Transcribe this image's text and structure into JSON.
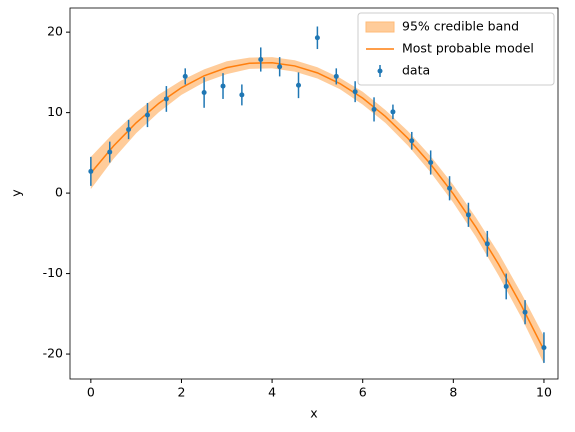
{
  "chart_data": {
    "type": "errorbar",
    "xlabel": "x",
    "ylabel": "y",
    "xlim": [
      -0.46,
      10.31
    ],
    "ylim": [
      -23.1,
      23.0
    ],
    "xticks": [
      0,
      2,
      4,
      6,
      8,
      10
    ],
    "yticks": [
      -20,
      -10,
      0,
      10,
      20
    ],
    "legend": "upper right",
    "band": {
      "name": "95% credible band",
      "color": "#ffbb78",
      "x": [
        0,
        0.5,
        1,
        1.5,
        2,
        2.5,
        3,
        3.5,
        4,
        4.5,
        5,
        5.5,
        6,
        6.5,
        7,
        7.5,
        8,
        8.5,
        9,
        9.5,
        10
      ],
      "lower": [
        0.5,
        4.25,
        7.44,
        10.05,
        12.2,
        13.78,
        14.79,
        15.43,
        15.5,
        15.1,
        14.24,
        12.9,
        11.0,
        8.73,
        5.89,
        2.58,
        -1.2,
        -5.45,
        -10.26,
        -15.45,
        -21.2
      ],
      "upper": [
        4.5,
        7.45,
        10.04,
        12.25,
        14.0,
        15.38,
        16.39,
        16.83,
        16.9,
        16.5,
        15.64,
        14.3,
        12.6,
        10.33,
        7.69,
        4.58,
        1.0,
        -3.05,
        -7.46,
        -12.45,
        -17.8
      ]
    },
    "model": {
      "name": "Most probable model",
      "color": "#ff7f0e",
      "x": [
        0,
        0.5,
        1,
        1.5,
        2,
        2.5,
        3,
        3.5,
        4,
        4.5,
        5,
        5.5,
        6,
        6.5,
        7,
        7.5,
        8,
        8.5,
        9,
        9.5,
        10
      ],
      "values": [
        2.5,
        5.85,
        8.74,
        11.15,
        13.1,
        14.58,
        15.59,
        16.13,
        16.2,
        15.8,
        14.94,
        13.6,
        11.8,
        9.53,
        6.79,
        3.58,
        -0.1,
        -4.25,
        -8.86,
        -13.95,
        -19.5
      ]
    },
    "data": {
      "name": "data",
      "color": "#1f77b4",
      "x": [
        0,
        0.417,
        0.833,
        1.25,
        1.667,
        2.083,
        2.5,
        2.917,
        3.333,
        3.75,
        4.167,
        4.583,
        5,
        5.417,
        5.833,
        6.25,
        6.667,
        7.083,
        7.5,
        7.917,
        8.333,
        8.75,
        9.167,
        9.583,
        10
      ],
      "values": [
        2.7,
        5.1,
        7.9,
        9.7,
        11.7,
        14.5,
        12.5,
        13.3,
        12.2,
        16.6,
        15.7,
        13.4,
        19.3,
        14.5,
        12.6,
        10.4,
        10.1,
        6.5,
        3.8,
        0.6,
        -2.7,
        -6.3,
        -11.6,
        -14.8,
        -19.2
      ],
      "errors": [
        1.8,
        1.3,
        1.2,
        1.5,
        1.6,
        1.0,
        1.9,
        1.6,
        1.3,
        1.5,
        1.2,
        1.6,
        1.4,
        1.0,
        1.3,
        1.5,
        0.9,
        1.1,
        1.5,
        1.5,
        1.5,
        1.6,
        1.6,
        1.5,
        1.9
      ]
    }
  }
}
